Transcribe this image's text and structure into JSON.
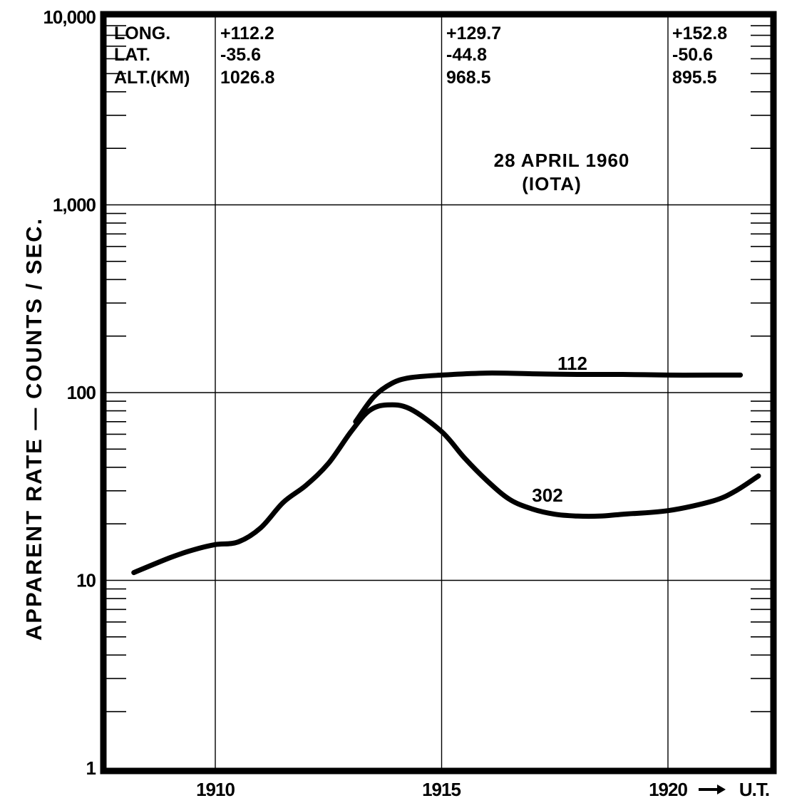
{
  "chart_data": {
    "type": "line",
    "title": "28 APRIL 1960",
    "subtitle": "(IOTA)",
    "ylabel": "APPARENT RATE — COUNTS / SEC.",
    "xlabel": "U.T.",
    "y_scale": "log",
    "ylim": [
      1,
      10000
    ],
    "xlim": [
      1907.3,
      1922.3
    ],
    "grid": true,
    "x_ticks": [
      {
        "value": 1910,
        "label": "1910"
      },
      {
        "value": 1915,
        "label": "1915"
      },
      {
        "value": 1920,
        "label": "1920"
      }
    ],
    "x_axis_arrow_label": "1920 → U.T.",
    "y_ticks": [
      {
        "value": 1,
        "label": "1"
      },
      {
        "value": 10,
        "label": "10"
      },
      {
        "value": 100,
        "label": "100"
      },
      {
        "value": 1000,
        "label": "1,000"
      },
      {
        "value": 10000,
        "label": "10,000"
      }
    ],
    "position_table": {
      "row_labels": [
        "LONG.",
        "LAT.",
        "ALT.(KM)"
      ],
      "columns": [
        {
          "at": 1910,
          "values": [
            "+112.2",
            "-35.6",
            "1026.8"
          ]
        },
        {
          "at": 1915,
          "values": [
            "+129.7",
            "-44.8",
            "968.5"
          ]
        },
        {
          "at": 1920,
          "values": [
            "+152.8",
            "-50.6",
            "895.5"
          ]
        }
      ]
    },
    "series": [
      {
        "name": "112",
        "points": [
          [
            1913.1,
            70
          ],
          [
            1913.5,
            95
          ],
          [
            1913.9,
            112
          ],
          [
            1914.3,
            120
          ],
          [
            1915.0,
            124
          ],
          [
            1916.0,
            127
          ],
          [
            1917.0,
            126
          ],
          [
            1918.0,
            125
          ],
          [
            1919.0,
            125
          ],
          [
            1920.0,
            124
          ],
          [
            1921.0,
            124
          ],
          [
            1921.6,
            124
          ]
        ]
      },
      {
        "name": "302",
        "points": [
          [
            1908.2,
            11
          ],
          [
            1909.0,
            13.2
          ],
          [
            1909.5,
            14.5
          ],
          [
            1910.0,
            15.5
          ],
          [
            1910.5,
            16
          ],
          [
            1911.0,
            19
          ],
          [
            1911.5,
            26
          ],
          [
            1912.0,
            32
          ],
          [
            1912.5,
            42
          ],
          [
            1913.0,
            62
          ],
          [
            1913.4,
            80
          ],
          [
            1913.8,
            86
          ],
          [
            1914.3,
            82
          ],
          [
            1915.0,
            62
          ],
          [
            1915.5,
            45
          ],
          [
            1916.0,
            34
          ],
          [
            1916.5,
            27
          ],
          [
            1917.0,
            24
          ],
          [
            1917.5,
            22.5
          ],
          [
            1918.0,
            22
          ],
          [
            1918.5,
            22
          ],
          [
            1919.0,
            22.5
          ],
          [
            1920.0,
            23.5
          ],
          [
            1921.0,
            26.5
          ],
          [
            1921.5,
            30
          ],
          [
            1922.0,
            36
          ]
        ]
      }
    ]
  }
}
